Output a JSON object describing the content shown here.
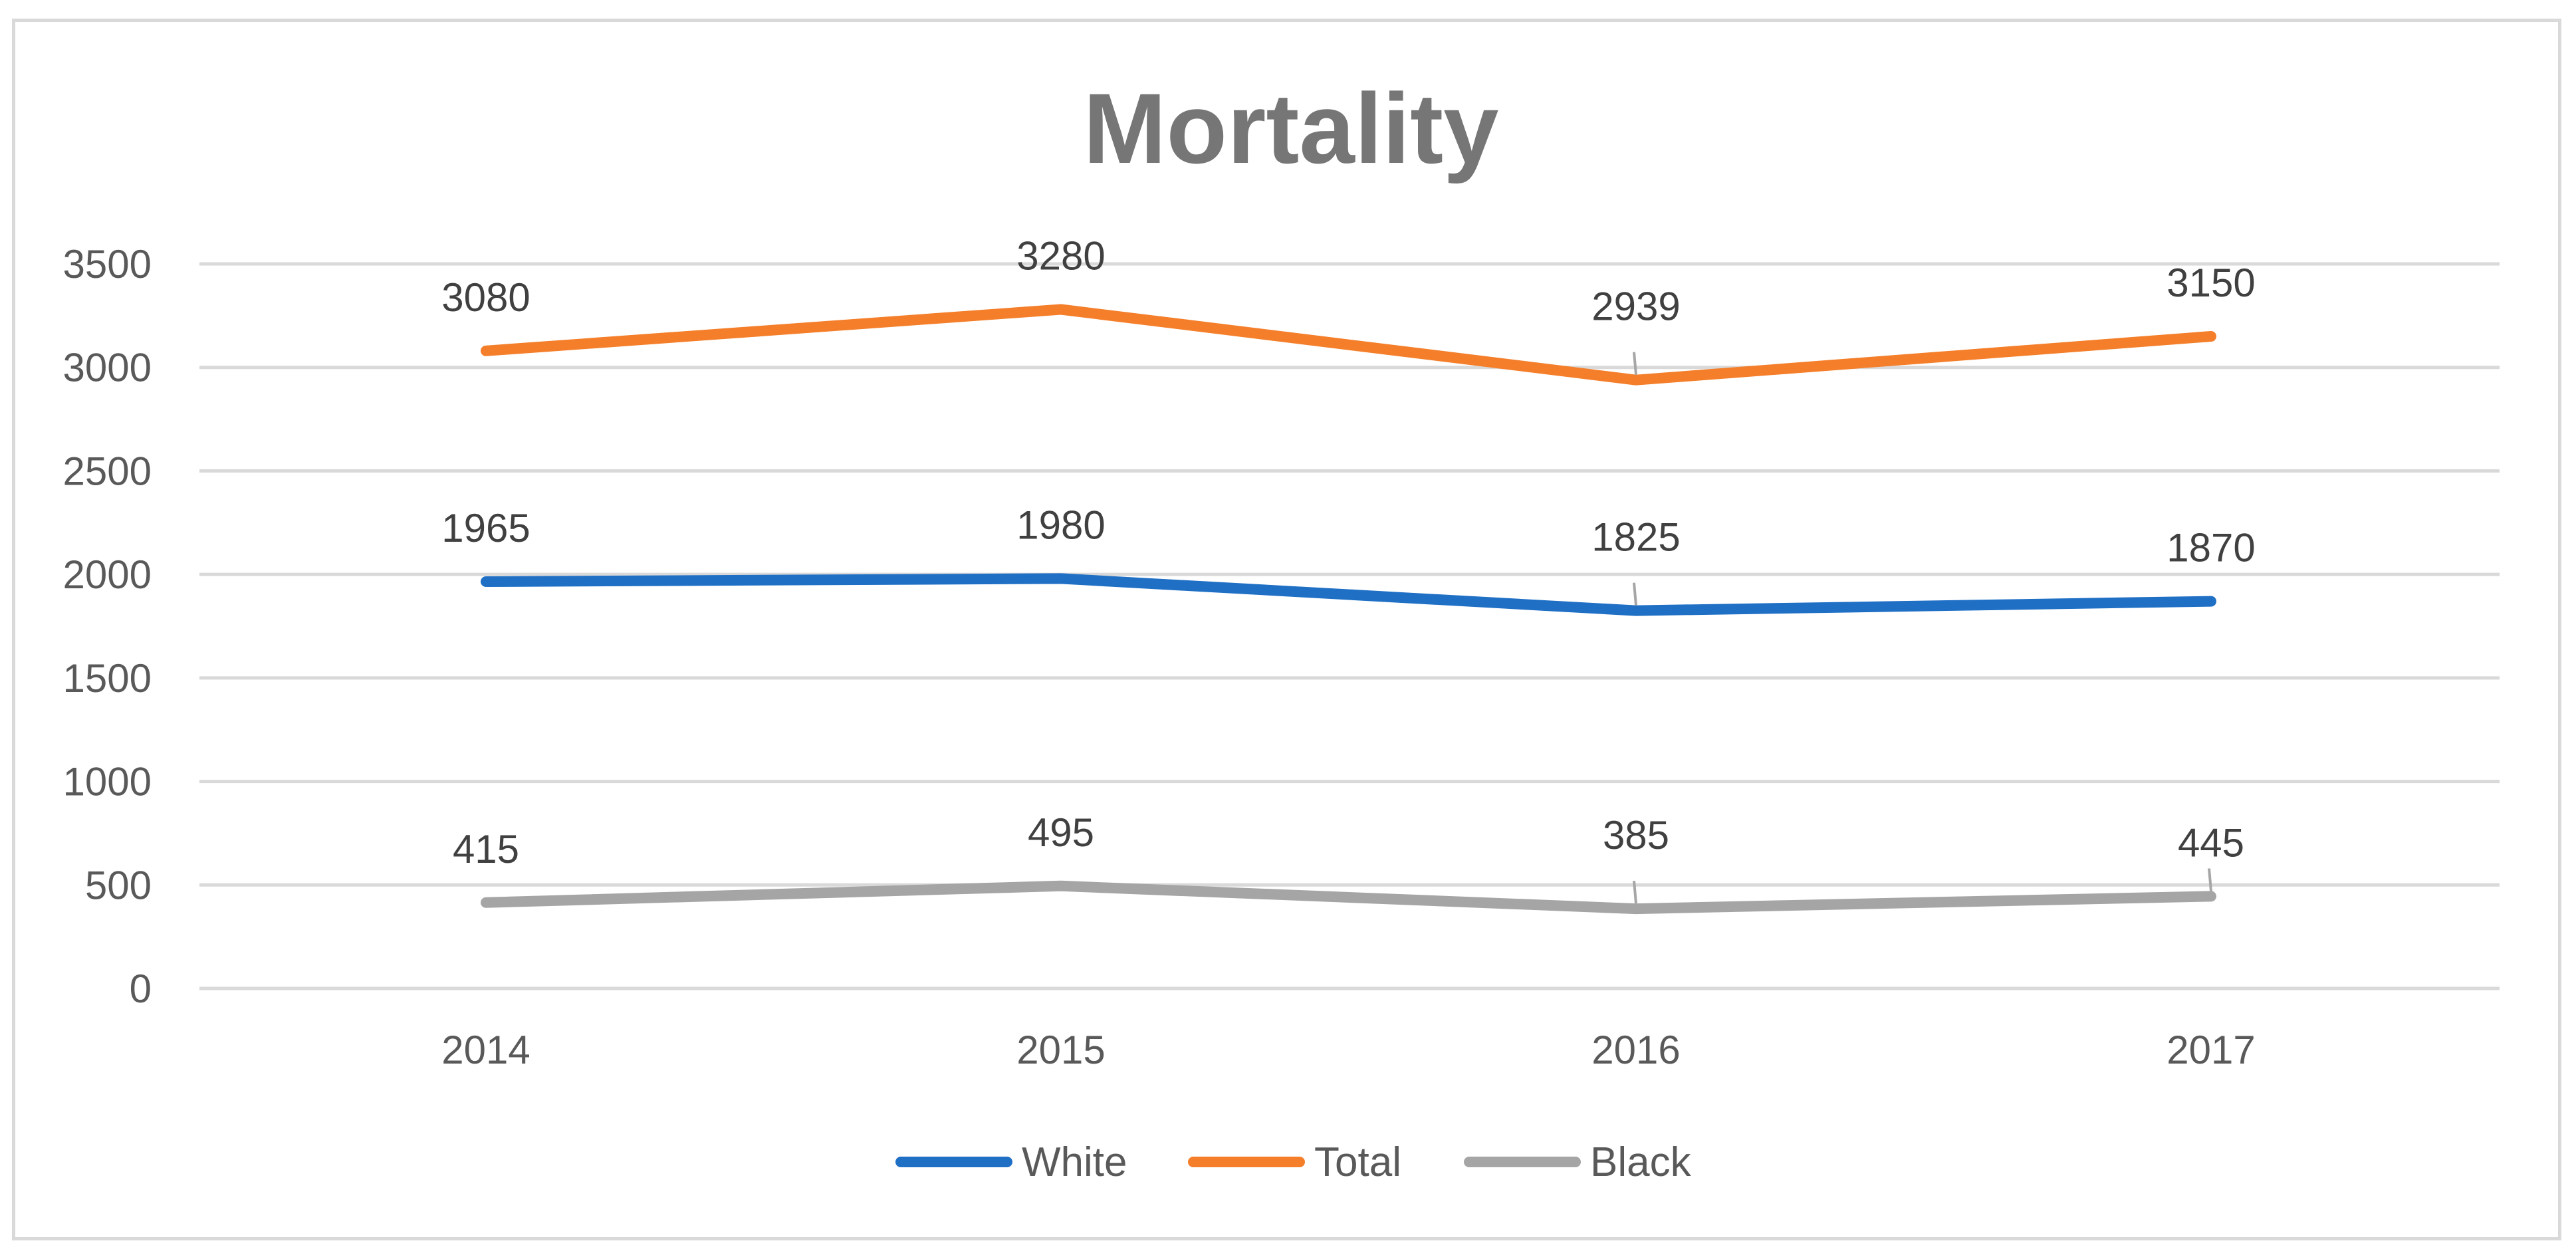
{
  "chart_data": {
    "type": "line",
    "title": "Mortality",
    "xlabel": "",
    "ylabel": "",
    "categories": [
      "2014",
      "2015",
      "2016",
      "2017"
    ],
    "ylim": [
      0,
      3500
    ],
    "y_ticks": [
      0,
      500,
      1000,
      1500,
      2000,
      2500,
      3000,
      3500
    ],
    "y_tick_labels": [
      "0",
      "500",
      "1000",
      "1500",
      "2000",
      "2500",
      "3000",
      "3500"
    ],
    "grid": true,
    "legend_position": "bottom",
    "series": [
      {
        "name": "White",
        "color": "#1f6fc5",
        "values": [
          1965,
          1980,
          1825,
          1870
        ],
        "labels": [
          "1965",
          "1980",
          "1825",
          "1870"
        ]
      },
      {
        "name": "Total",
        "color": "#f47e2a",
        "values": [
          3080,
          3280,
          2939,
          3150
        ],
        "labels": [
          "3080",
          "3280",
          "2939",
          "3150"
        ]
      },
      {
        "name": "Black",
        "color": "#a5a5a5",
        "values": [
          415,
          495,
          385,
          445
        ],
        "labels": [
          "415",
          "495",
          "385",
          "445"
        ]
      }
    ]
  }
}
